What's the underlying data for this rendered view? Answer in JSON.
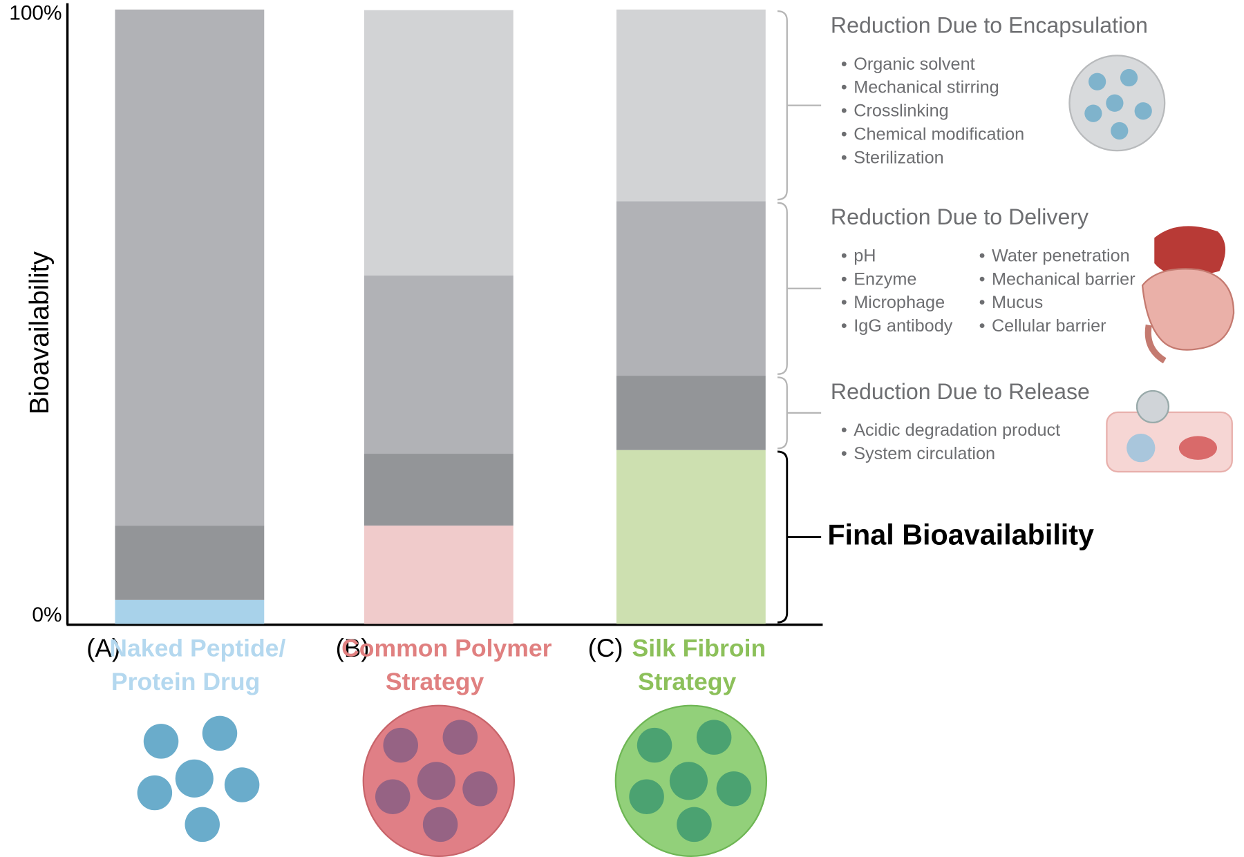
{
  "chart_data": {
    "type": "stacked-bar",
    "y_label": "Bioavailability",
    "ylim": [
      0,
      100
    ],
    "yticks": [
      {
        "value": 0,
        "label": "0%"
      },
      {
        "value": 100,
        "label": "100%"
      }
    ],
    "category_prefixes": [
      "(A)",
      "(B)",
      "(C)"
    ],
    "categories": [
      [
        "Naked Peptide/",
        "Protein Drug"
      ],
      [
        "Common Polymer",
        "Strategy"
      ],
      [
        "Silk Fibroin",
        "Strategy"
      ]
    ],
    "category_colors": [
      "#b4d8ef",
      "#e08080",
      "#8cc05a"
    ],
    "series": [
      {
        "name": "Final Bioavailability",
        "colors": [
          "#a8d2ea",
          "#f0cbcb",
          "#cde0b0"
        ],
        "values": [
          3.9,
          16.0,
          28.3
        ],
        "details": []
      },
      {
        "name": "Reduction Due to Release",
        "color": "#939598",
        "values": [
          12.1,
          11.7,
          12.1
        ],
        "details": [
          [
            "Acidic degradation product",
            "System circulation"
          ]
        ]
      },
      {
        "name": "Reduction Due to Delivery",
        "color": "#b1b2b6",
        "values": [
          84.0,
          29.0,
          28.4
        ],
        "details": [
          [
            "pH",
            "Enzyme",
            "Microphage",
            "IgG antibody"
          ],
          [
            "Water penetration",
            "Mechanical barrier",
            "Mucus",
            "Cellular barrier"
          ]
        ]
      },
      {
        "name": "Reduction Due to Encapsulation",
        "color": "#d2d3d5",
        "values": [
          0,
          43.2,
          31.2
        ],
        "details": [
          [
            "Organic solvent",
            "Mechanical stirring",
            "Crosslinking",
            "Chemical modification",
            "Sterilization"
          ]
        ]
      }
    ]
  }
}
